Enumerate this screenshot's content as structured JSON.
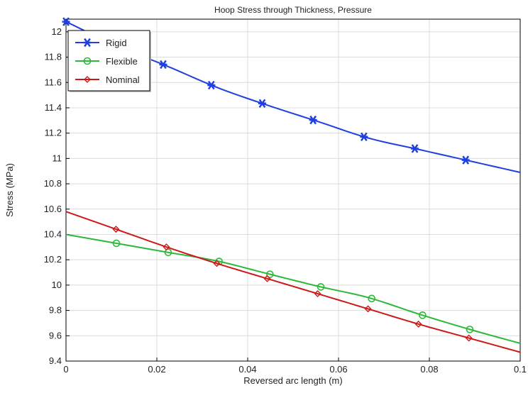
{
  "chart_data": {
    "type": "line",
    "title": "Hoop Stress through Thickness, Pressure",
    "xlabel": "Reversed arc length (m)",
    "ylabel": "Stress (MPa)",
    "xlim": [
      0,
      0.1
    ],
    "ylim": [
      9.4,
      12.1
    ],
    "grid": true,
    "legend_position": "top-left",
    "x_ticks": [
      "0",
      "0.02",
      "0.04",
      "0.06",
      "0.08",
      "0.1"
    ],
    "y_ticks": [
      "9.4",
      "9.6",
      "9.8",
      "10",
      "10.2",
      "10.4",
      "10.6",
      "10.8",
      "11",
      "11.2",
      "11.4",
      "11.6",
      "11.8",
      "12"
    ],
    "series": [
      {
        "name": "Rigid",
        "color": "#1f3fe0",
        "marker": "asterisk",
        "x": [
          0.0,
          0.0111,
          0.0222,
          0.0333,
          0.0444,
          0.0556,
          0.0667,
          0.0778,
          0.0889,
          0.1
        ],
        "y": [
          12.08,
          11.89,
          11.73,
          11.56,
          11.42,
          11.29,
          11.16,
          11.07,
          10.98,
          10.89
        ],
        "marker_x": [
          0.0,
          0.0214,
          0.032,
          0.0432,
          0.0544,
          0.0656,
          0.0768,
          0.088
        ]
      },
      {
        "name": "Flexible",
        "color": "#2cb83a",
        "marker": "circle",
        "x": [
          0.0,
          0.0111,
          0.0222,
          0.0333,
          0.0444,
          0.0556,
          0.0667,
          0.0778,
          0.0889,
          0.1
        ],
        "y": [
          10.4,
          10.33,
          10.26,
          10.19,
          10.09,
          9.99,
          9.9,
          9.77,
          9.65,
          9.54
        ],
        "marker_x": [
          0.0111,
          0.0225,
          0.0337,
          0.0449,
          0.0561,
          0.0673,
          0.0785,
          0.0889
        ]
      },
      {
        "name": "Nominal",
        "color": "#cc1a1a",
        "marker": "diamond",
        "x": [
          0.0,
          0.0111,
          0.0222,
          0.0333,
          0.0444,
          0.0556,
          0.0667,
          0.0778,
          0.0889,
          0.1
        ],
        "y": [
          10.58,
          10.44,
          10.3,
          10.17,
          10.05,
          9.93,
          9.81,
          9.69,
          9.58,
          9.47
        ],
        "marker_x": [
          0.011,
          0.0221,
          0.0332,
          0.0443,
          0.0554,
          0.0665,
          0.0776,
          0.0887
        ]
      }
    ]
  }
}
